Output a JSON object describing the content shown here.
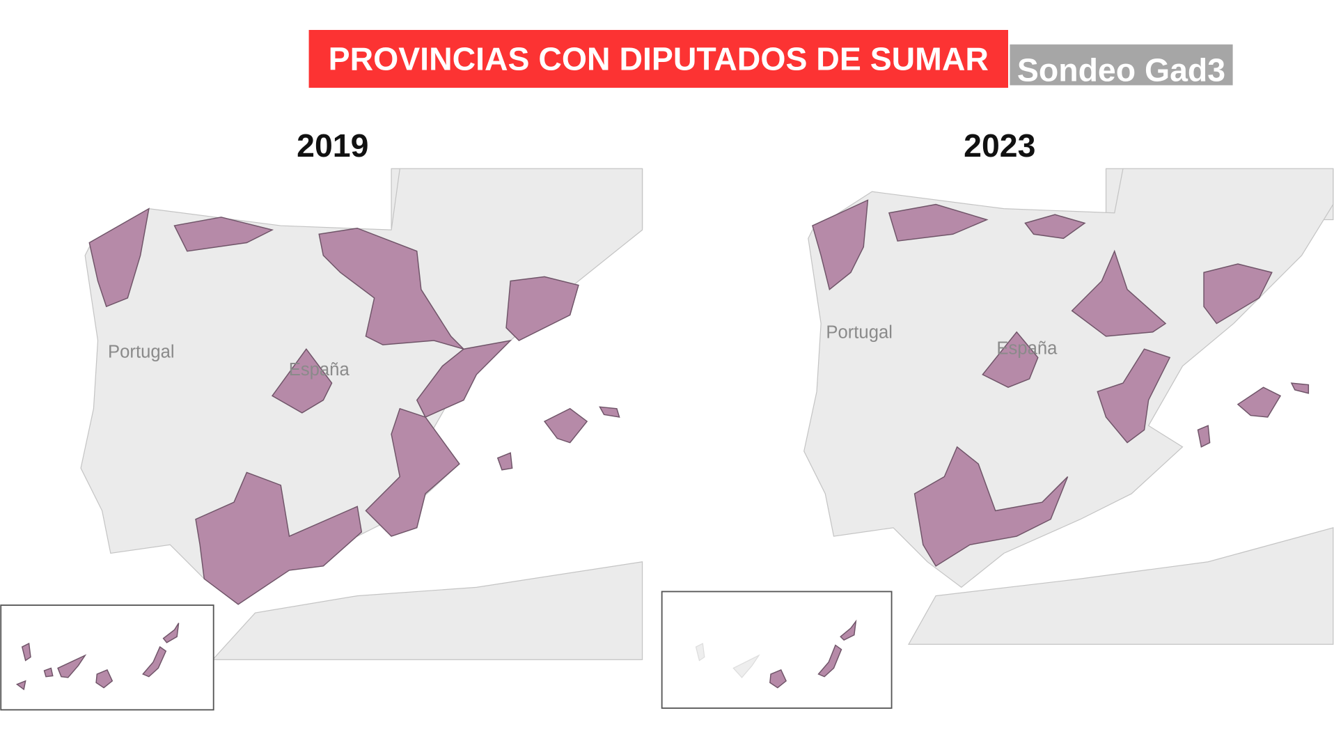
{
  "header": {
    "title": "PROVINCIAS CON DIPUTADOS DE SUMAR",
    "source_badge": "Sondeo Gad3"
  },
  "colors": {
    "title_bg": "#fc3333",
    "badge_bg": "#a6a6a6",
    "highlight": "#b68aa8",
    "land": "#ebebeb"
  },
  "maps": [
    {
      "year": "2019",
      "labels": {
        "portugal": "Portugal",
        "spain": "España"
      }
    },
    {
      "year": "2023",
      "labels": {
        "portugal": "Portugal",
        "spain": "España"
      }
    }
  ]
}
